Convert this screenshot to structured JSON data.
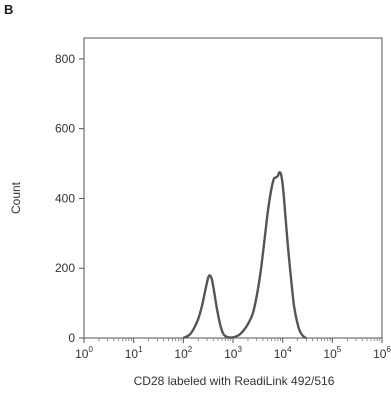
{
  "panel_label": "B",
  "chart_data": {
    "type": "line",
    "title": "",
    "xlabel": "CD28 labeled with ReadiLink 492/516",
    "ylabel": "Count",
    "x_scale": "log",
    "xlim": [
      1,
      1000000
    ],
    "ylim": [
      0,
      860
    ],
    "x_ticks": [
      {
        "base": "10",
        "exp": "0"
      },
      {
        "base": "10",
        "exp": "1"
      },
      {
        "base": "10",
        "exp": "2"
      },
      {
        "base": "10",
        "exp": "3"
      },
      {
        "base": "10",
        "exp": "4"
      },
      {
        "base": "10",
        "exp": "5"
      },
      {
        "base": "10",
        "exp": "6"
      }
    ],
    "y_ticks": [
      "0",
      "200",
      "400",
      "600",
      "800"
    ],
    "y_tick_values": [
      0,
      200,
      400,
      600,
      800
    ],
    "grid": false,
    "line_color": "#555555",
    "series": [
      {
        "x": [
          100,
          130,
          160,
          200,
          240,
          280,
          320,
          350,
          380,
          420,
          480,
          560,
          650,
          800,
          1000,
          1300,
          1600,
          2000,
          2500,
          3000,
          3600,
          4300,
          5000,
          5800,
          6600,
          7300,
          8000,
          8600,
          9200,
          9800,
          10500,
          11500,
          13000,
          15000,
          17000,
          20000,
          23000,
          27000,
          30000
        ],
        "y": [
          0,
          8,
          25,
          55,
          95,
          140,
          175,
          178,
          165,
          130,
          80,
          35,
          10,
          2,
          2,
          8,
          20,
          40,
          70,
          120,
          190,
          280,
          360,
          420,
          455,
          460,
          465,
          475,
          470,
          450,
          410,
          340,
          250,
          160,
          90,
          40,
          15,
          3,
          0
        ]
      }
    ]
  }
}
